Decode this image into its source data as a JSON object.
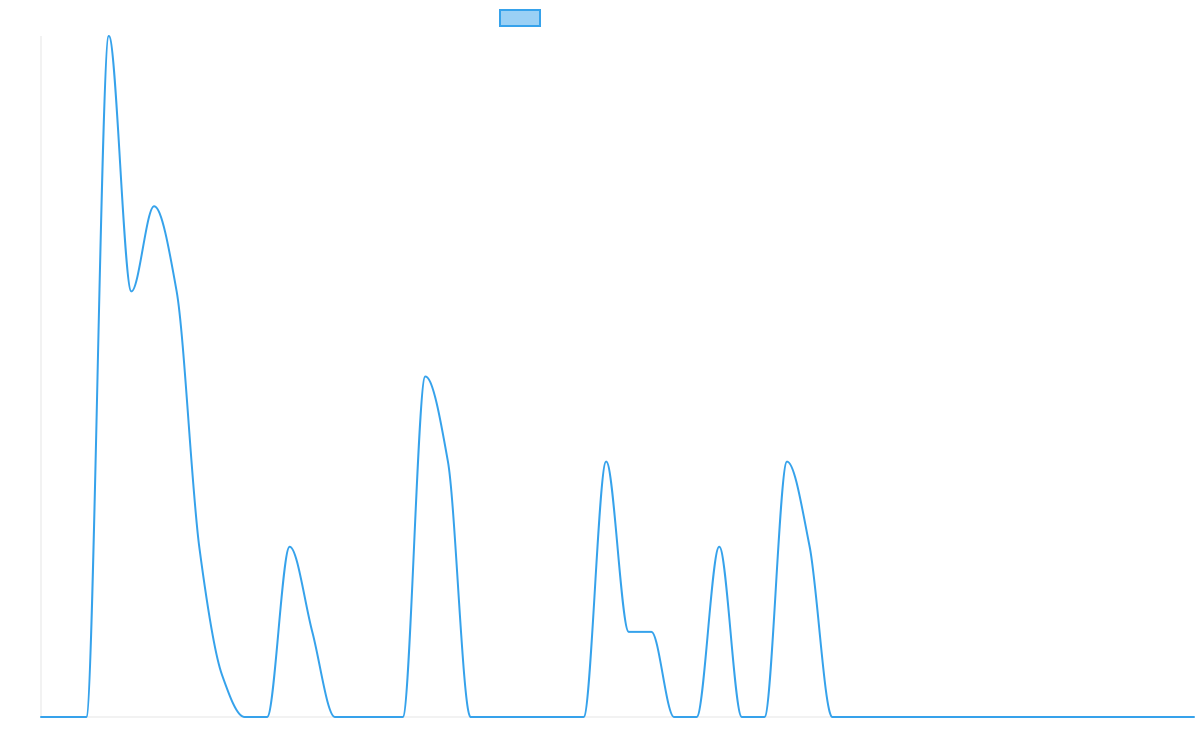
{
  "chart_data": {
    "type": "line",
    "title": "",
    "xlabel": "",
    "ylabel": "",
    "x": [
      0,
      1,
      2,
      3,
      4,
      5,
      6,
      7,
      8,
      9,
      10,
      11,
      12,
      13,
      14,
      15,
      16,
      17,
      18,
      19,
      20,
      21,
      22,
      23,
      24,
      25,
      26,
      27,
      28,
      29,
      30,
      31,
      32,
      33,
      34,
      35,
      36,
      37,
      38,
      39,
      40,
      41,
      42,
      43,
      44,
      45,
      46,
      47,
      48,
      49,
      50,
      51
    ],
    "ylim": [
      0,
      8
    ],
    "legend": {
      "position": "top",
      "labels": [
        ""
      ]
    },
    "grid": false,
    "series": [
      {
        "name": "",
        "color": "#36a2eb",
        "fill": "#9ad0f5",
        "values": [
          0,
          0,
          0,
          8,
          5,
          6,
          5,
          2,
          0.5,
          0,
          0,
          2,
          1,
          0,
          0,
          0,
          0,
          4,
          3,
          0,
          0,
          0,
          0,
          0,
          0,
          3,
          1,
          1,
          0,
          0,
          2,
          0,
          0,
          3,
          2,
          0,
          0,
          0,
          0,
          0,
          0,
          0,
          0,
          0,
          0,
          0,
          0,
          0,
          0,
          0,
          0,
          0
        ]
      }
    ]
  }
}
